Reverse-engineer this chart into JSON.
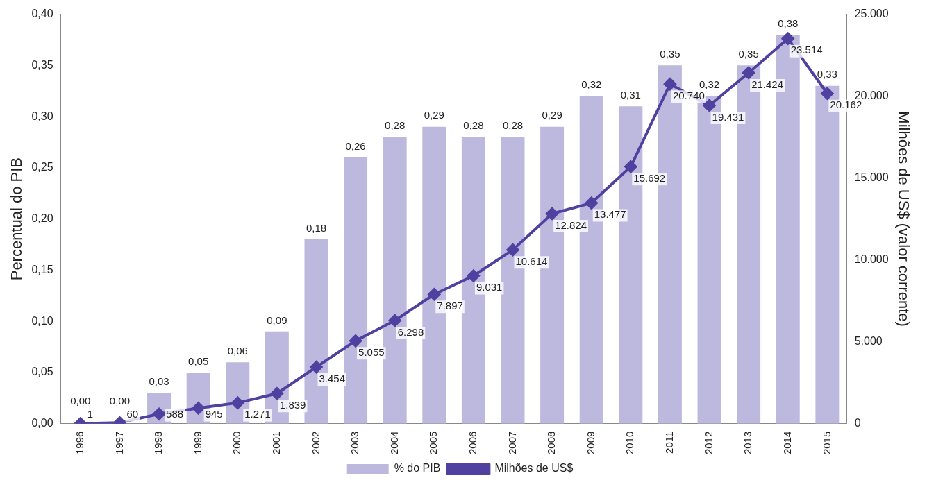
{
  "chart_data": {
    "type": "bar",
    "ylabel": "Percentual do PIB",
    "y2label": "Milhões de US$ (valor corrente)",
    "categories": [
      "1996",
      "1997",
      "1998",
      "1999",
      "2000",
      "2001",
      "2002",
      "2003",
      "2004",
      "2005",
      "2006",
      "2007",
      "2008",
      "2009",
      "2010",
      "2011",
      "2012",
      "2013",
      "2014",
      "2015"
    ],
    "series": [
      {
        "name": "% do PIB",
        "color": "#bcb8de",
        "values": [
          0,
          0,
          0.03,
          0.05,
          0.06,
          0.09,
          0.18,
          0.26,
          0.28,
          0.29,
          0.28,
          0.28,
          0.29,
          0.32,
          0.31,
          0.35,
          0.32,
          0.35,
          0.38,
          0.33
        ],
        "value_labels": [
          "0,00",
          "0,00",
          "0,03",
          "0,05",
          "0,06",
          "0,09",
          "0,18",
          "0,26",
          "0,28",
          "0,29",
          "0,28",
          "0,28",
          "0,29",
          "0,32",
          "0,31",
          "0,35",
          "0,32",
          "0,35",
          "0,38",
          "0,33"
        ]
      },
      {
        "name": "Milhões de US$",
        "type": "line",
        "axis": "y2",
        "color": "#5040a0",
        "marker": "diamond",
        "values": [
          1,
          60,
          588,
          945,
          1271,
          1839,
          3454,
          5055,
          6298,
          7897,
          9031,
          10614,
          12824,
          13477,
          15692,
          20740,
          19431,
          21424,
          23514,
          20162
        ],
        "value_labels": [
          "1",
          "60",
          "588",
          "945",
          "1.271",
          "1.839",
          "3.454",
          "5.055",
          "6.298",
          "7.897",
          "9.031",
          "10.614",
          "12.824",
          "13.477",
          "15.692",
          "20.740",
          "19.431",
          "21.424",
          "23.514",
          "20.162"
        ]
      }
    ],
    "ylim": [
      0,
      0.4
    ],
    "yticks": [
      {
        "value": 0,
        "label": "0,00"
      },
      {
        "value": 0.05,
        "label": "0,05"
      },
      {
        "value": 0.1,
        "label": "0,10"
      },
      {
        "value": 0.15,
        "label": "0,15"
      },
      {
        "value": 0.2,
        "label": "0,20"
      },
      {
        "value": 0.25,
        "label": "0,25"
      },
      {
        "value": 0.3,
        "label": "0,30"
      },
      {
        "value": 0.35,
        "label": "0,35"
      },
      {
        "value": 0.4,
        "label": "0,40"
      }
    ],
    "y2lim": [
      0,
      25000
    ],
    "y2ticks": [
      {
        "value": 0,
        "label": "0"
      },
      {
        "value": 5000,
        "label": "5.000"
      },
      {
        "value": 10000,
        "label": "10.000"
      },
      {
        "value": 15000,
        "label": "15.000"
      },
      {
        "value": 20000,
        "label": "20.000"
      },
      {
        "value": 25000,
        "label": "25.000"
      }
    ],
    "grid": false,
    "legend": "bottom"
  }
}
